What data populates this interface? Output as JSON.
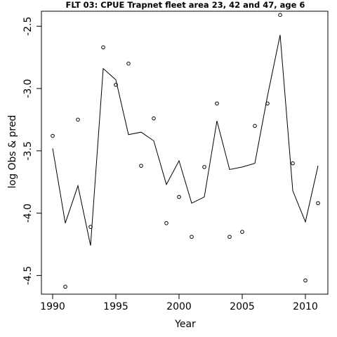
{
  "chart_data": {
    "type": "line",
    "title": "FLT 03: CPUE Trapnet fleet area 23, 42 and 47, age 6",
    "xlabel": "Year",
    "ylabel": "log Obs & pred",
    "xlim": [
      1990,
      2011
    ],
    "ylim": [
      -4.65,
      -2.38
    ],
    "xticks": [
      1990,
      1995,
      2000,
      2005,
      2010
    ],
    "yticks": [
      -4.5,
      -4.0,
      -3.5,
      -3.0,
      -2.5
    ],
    "x_tick_labels": [
      "1990",
      "1995",
      "2000",
      "2005",
      "2010"
    ],
    "y_tick_labels": [
      "-4.5",
      "-4.0",
      "-3.5",
      "-3.0",
      "-2.5"
    ],
    "grid": false,
    "series": [
      {
        "style": "line",
        "x": [
          1990,
          1991,
          1992,
          1993,
          1994,
          1995,
          1996,
          1997,
          1998,
          1999,
          2000,
          2001,
          2002,
          2003,
          2004,
          2005,
          2006,
          2007,
          2008,
          2009,
          2010,
          2011
        ],
        "values": [
          -3.48,
          -4.08,
          -3.78,
          -4.26,
          -2.84,
          -2.93,
          -3.37,
          -3.35,
          -3.42,
          -3.77,
          -3.58,
          -3.92,
          -3.87,
          -3.26,
          -3.65,
          -3.63,
          -3.6,
          -3.06,
          -2.57,
          -3.82,
          -4.07,
          -3.62
        ]
      },
      {
        "style": "points",
        "x": [
          1990,
          1991,
          1992,
          1993,
          1994,
          1995,
          1996,
          1997,
          1998,
          1999,
          2000,
          2001,
          2002,
          2003,
          2004,
          2005,
          2006,
          2007,
          2008,
          2009,
          2010,
          2011
        ],
        "values": [
          -3.38,
          -4.59,
          -3.25,
          -4.11,
          -2.67,
          -2.97,
          -2.8,
          -3.62,
          -3.24,
          -4.08,
          -3.87,
          -4.19,
          -3.63,
          -3.12,
          -4.19,
          -4.15,
          -3.3,
          -3.12,
          -2.41,
          -3.6,
          -4.54,
          -3.92
        ]
      }
    ]
  }
}
